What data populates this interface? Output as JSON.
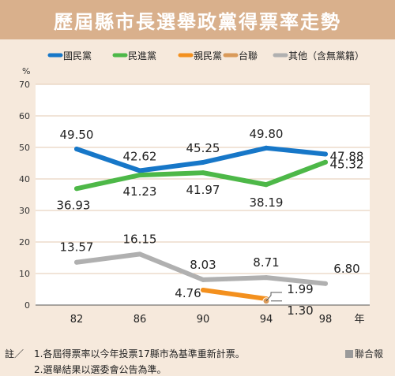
{
  "chart_data": {
    "type": "line",
    "title": "歷屆縣市長選舉政黨得票率走勢",
    "ylabel": "%",
    "xlabel": "年",
    "ylim": [
      0,
      70
    ],
    "yticks": [
      0,
      10,
      20,
      30,
      40,
      50,
      60,
      70
    ],
    "x": [
      82,
      86,
      90,
      94,
      98
    ],
    "grid": true,
    "legend_position": "top",
    "series": [
      {
        "name": "國民黨",
        "color": "#1777c8",
        "values": [
          49.5,
          42.62,
          45.25,
          49.8,
          47.88
        ]
      },
      {
        "name": "民進黨",
        "color": "#4db848",
        "values": [
          36.93,
          41.23,
          41.97,
          38.19,
          45.32
        ]
      },
      {
        "name": "親民黨",
        "color": "#f3901e",
        "values": [
          null,
          null,
          4.76,
          1.99,
          null
        ]
      },
      {
        "name": "台聯",
        "color": "#d99a5a",
        "values": [
          null,
          null,
          null,
          1.3,
          null
        ]
      },
      {
        "name": "其他（含無黨籍）",
        "color": "#b0b0b0",
        "values": [
          13.57,
          16.15,
          8.03,
          8.71,
          6.8
        ]
      }
    ],
    "data_labels": {
      "國民黨": [
        "49.50",
        "42.62",
        "45.25",
        "49.80",
        "47.88"
      ],
      "民進黨": [
        "36.93",
        "41.23",
        "41.97",
        "38.19",
        "45.32"
      ],
      "親民黨": [
        null,
        null,
        "4.76",
        "1.99",
        null
      ],
      "台聯": [
        null,
        null,
        null,
        "1.30",
        null
      ],
      "其他（含無黨籍）": [
        "13.57",
        "16.15",
        "8.03",
        "8.71",
        "6.80"
      ]
    }
  },
  "notes": {
    "prefix": "註／",
    "line1": "1.各屆得票率以今年投票17縣市為基準重新計票。",
    "line2": "2.選舉結果以選委會公告為準。"
  },
  "source": "聯合報"
}
